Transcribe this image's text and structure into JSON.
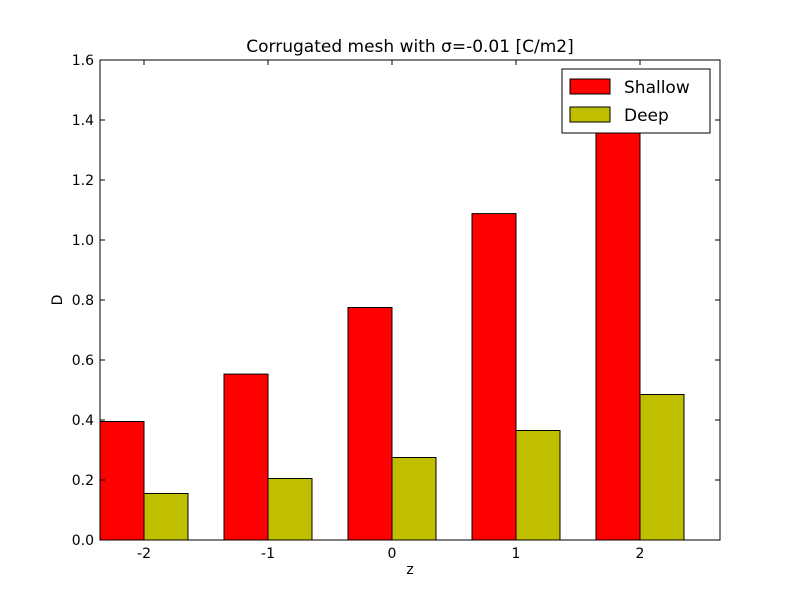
{
  "chart_data": {
    "type": "bar",
    "title": "Corrugated mesh with σ=-0.01 [C/m2]",
    "xlabel": "z",
    "ylabel": "D",
    "categories": [
      "-2",
      "-1",
      "0",
      "1",
      "2"
    ],
    "ylim": [
      0,
      1.6
    ],
    "yticks": [
      "0.0",
      "0.2",
      "0.4",
      "0.6",
      "0.8",
      "1.0",
      "1.2",
      "1.4",
      "1.6"
    ],
    "grid": false,
    "legend_position": "top-right",
    "series": [
      {
        "name": "Shallow",
        "color": "#ff0000",
        "values": [
          0.395,
          0.553,
          0.775,
          1.088,
          1.4
        ]
      },
      {
        "name": "Deep",
        "color": "#bfbf00",
        "values": [
          0.155,
          0.205,
          0.275,
          0.365,
          0.485
        ]
      }
    ]
  }
}
